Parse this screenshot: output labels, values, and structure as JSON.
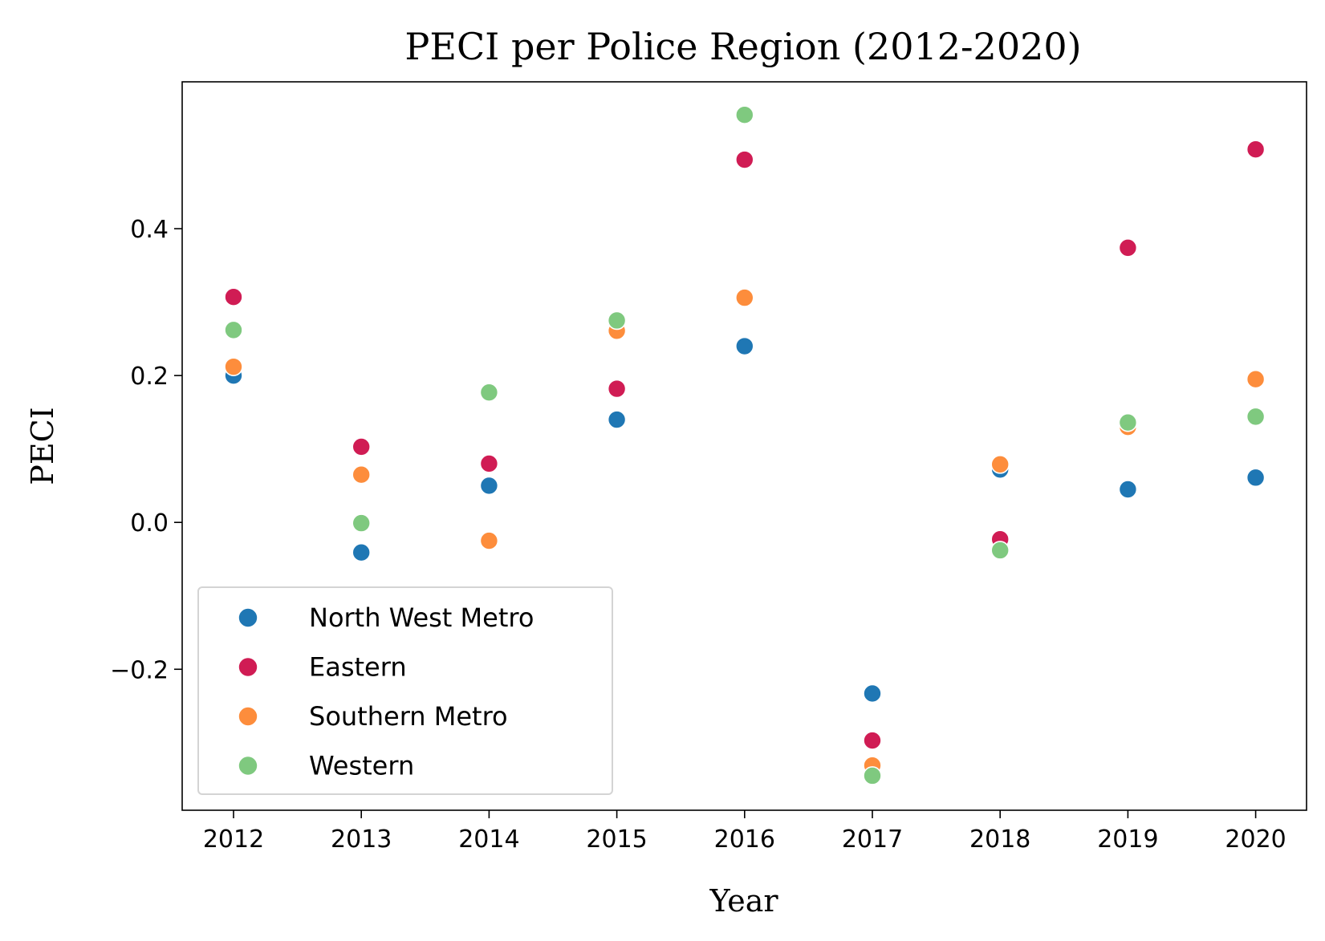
{
  "chart_data": {
    "type": "scatter",
    "title": "PECI per Police Region (2012-2020)",
    "xlabel": "Year",
    "ylabel": "PECI",
    "categories": [
      "2012",
      "2013",
      "2014",
      "2015",
      "2016",
      "2017",
      "2018",
      "2019",
      "2020"
    ],
    "ylim": [
      -0.392,
      0.6
    ],
    "yticks": [
      -0.2,
      0.0,
      0.2,
      0.4
    ],
    "ytick_labels": [
      "−0.2",
      "0.0",
      "0.2",
      "0.4"
    ],
    "grid": false,
    "legend_position": "lower-left",
    "series": [
      {
        "name": "North West Metro",
        "color": "#1f77b4",
        "values": [
          0.2,
          -0.041,
          0.05,
          0.14,
          0.24,
          -0.233,
          0.072,
          0.045,
          0.061
        ]
      },
      {
        "name": "Eastern",
        "color": "#d01c54",
        "values": [
          0.307,
          0.103,
          0.08,
          0.182,
          0.494,
          -0.297,
          -0.023,
          0.374,
          0.508
        ]
      },
      {
        "name": "Southern Metro",
        "color": "#fd8d3c",
        "values": [
          0.212,
          0.065,
          -0.025,
          0.261,
          0.306,
          -0.331,
          0.079,
          0.13,
          0.195
        ]
      },
      {
        "name": "Western",
        "color": "#7fc97f",
        "values": [
          0.262,
          -0.001,
          0.177,
          0.275,
          0.555,
          -0.345,
          -0.038,
          0.136,
          0.144
        ]
      }
    ]
  }
}
